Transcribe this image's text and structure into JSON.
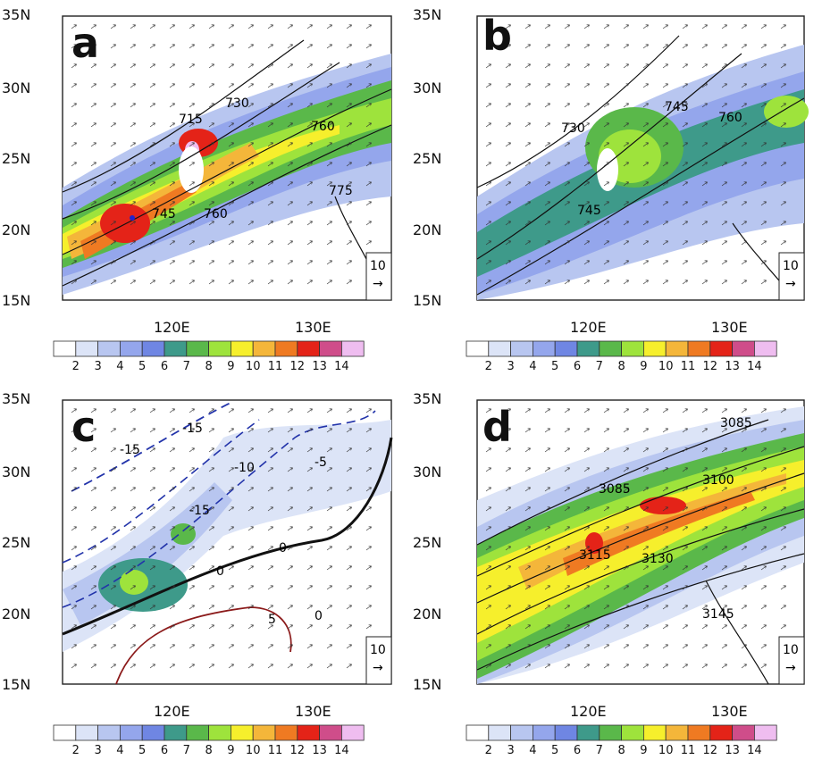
{
  "colorbar": {
    "labels": [
      "2",
      "3",
      "4",
      "5",
      "6",
      "7",
      "8",
      "9",
      "10",
      "11",
      "12",
      "13",
      "14"
    ],
    "colors": [
      "#ffffff",
      "#dce4f7",
      "#b8c6f0",
      "#94a6ec",
      "#6f86e3",
      "#3e9a8a",
      "#5ab84a",
      "#9ee33c",
      "#f6ef2c",
      "#f4b63a",
      "#ef7a22",
      "#e42318",
      "#cf4d8a",
      "#efbdf0"
    ]
  },
  "axes": {
    "lat_labels": [
      "35N",
      "30N",
      "25N",
      "20N",
      "15N"
    ],
    "lon_labels": [
      "120E",
      "130E"
    ],
    "lat_values": [
      35,
      30,
      25,
      20,
      15
    ],
    "lon_values": [
      120,
      130
    ],
    "lon_range": [
      112.5,
      135
    ],
    "lat_range": [
      15,
      35
    ]
  },
  "reference_vector": {
    "value": "10",
    "arrow": "→"
  },
  "panels": [
    {
      "id": "a",
      "label": "a",
      "contour_labels": [
        "715",
        "730",
        "745",
        "745",
        "760",
        "760",
        "775",
        "745"
      ],
      "shading_peak": 12
    },
    {
      "id": "b",
      "label": "b",
      "contour_labels": [
        "730",
        "745",
        "745",
        "760",
        "745"
      ],
      "shading_peak": 8
    },
    {
      "id": "c",
      "label": "c",
      "contour_labels": [
        "-15",
        "-15",
        "-10",
        "-5",
        "-15",
        "-10",
        "-5",
        "0",
        "0",
        "0",
        "5"
      ],
      "shading_peak": 8
    },
    {
      "id": "d",
      "label": "d",
      "contour_labels": [
        "3085",
        "3085",
        "3100",
        "3115",
        "3115",
        "3130",
        "3145"
      ],
      "shading_peak": 12
    }
  ]
}
